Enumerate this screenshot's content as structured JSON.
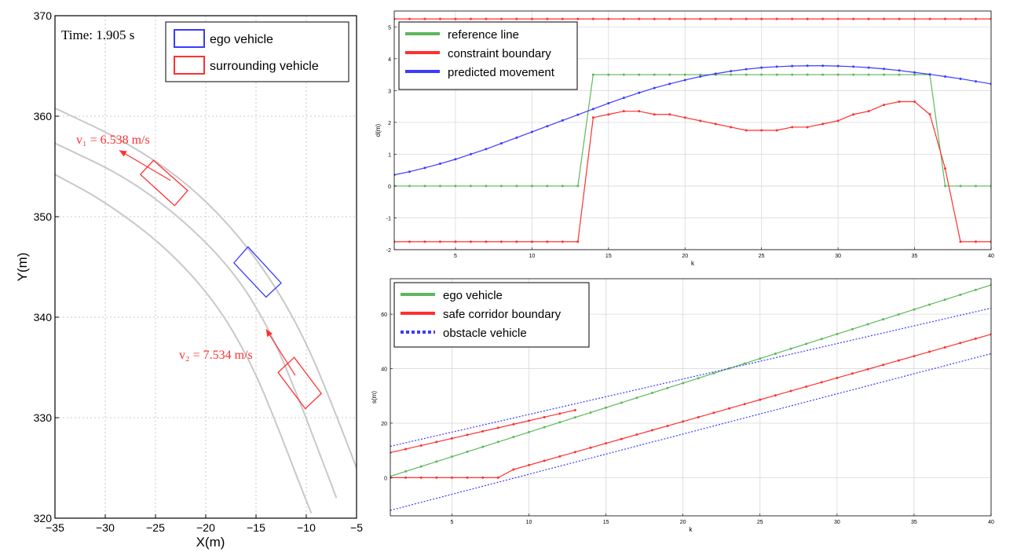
{
  "colors": {
    "green": "#5cb85c",
    "red": "#ff3030",
    "blue": "#3a3aff",
    "road": "#c8c8c8",
    "grid": "#d9d9d9",
    "frame": "#000000"
  },
  "chart_data": [
    {
      "id": "scene",
      "type": "scatter",
      "title": "",
      "xlabel": "X(m)",
      "ylabel": "Y(m)",
      "xlim": [
        -35,
        -5
      ],
      "ylim": [
        320,
        370
      ],
      "xticks": [
        -35,
        -30,
        -25,
        -20,
        -15,
        -10,
        -5
      ],
      "yticks": [
        320,
        330,
        340,
        350,
        360,
        370
      ],
      "xtick_labels": [
        "−35",
        "−30",
        "−25",
        "−20",
        "−15",
        "−10",
        "−5"
      ],
      "ytick_labels": [
        "320",
        "330",
        "340",
        "350",
        "360",
        "370"
      ],
      "grid": true,
      "grid_style": "dotted",
      "time_label": "Time: 1.905 s",
      "legend_position": "top-right",
      "legend": [
        {
          "label": "ego vehicle",
          "color": "#3a3aff"
        },
        {
          "label": "surrounding vehicle",
          "color": "#ff3030"
        }
      ],
      "road_curves": [
        [
          [
            -35,
            360.8
          ],
          [
            -28,
            357.5
          ],
          [
            -22,
            353.5
          ],
          [
            -17,
            348.5
          ],
          [
            -13,
            343
          ],
          [
            -10,
            337.5
          ],
          [
            -7.5,
            331.5
          ],
          [
            -5,
            325
          ]
        ],
        [
          [
            -35,
            357.3
          ],
          [
            -28,
            354
          ],
          [
            -22,
            349.5
          ],
          [
            -17,
            344.3
          ],
          [
            -13.5,
            338.5
          ],
          [
            -11,
            332.5
          ],
          [
            -8.5,
            326
          ],
          [
            -7,
            322
          ]
        ],
        [
          [
            -35,
            354.2
          ],
          [
            -30,
            351.5
          ],
          [
            -24,
            347
          ],
          [
            -19,
            341.5
          ],
          [
            -15.5,
            335.5
          ],
          [
            -13,
            329.5
          ],
          [
            -10.5,
            323
          ],
          [
            -9.5,
            320.5
          ]
        ]
      ],
      "vehicles": [
        {
          "kind": "ego",
          "corners": [
            [
              -17.2,
              345.4
            ],
            [
              -15.8,
              347
            ],
            [
              -12.5,
              343.4
            ],
            [
              -14,
              342
            ]
          ],
          "color": "#3a3aff"
        },
        {
          "kind": "surrounding",
          "corners": [
            [
              -26.5,
              354.2
            ],
            [
              -25.2,
              355.6
            ],
            [
              -21.8,
              352.6
            ],
            [
              -23.1,
              351.1
            ]
          ],
          "color": "#ff3030",
          "velocity_label": "v₁ = 6.538 m/s",
          "arrow_from": [
            -23.5,
            353.6
          ],
          "arrow_to": [
            -28.6,
            356.6
          ]
        },
        {
          "kind": "surrounding",
          "corners": [
            [
              -12.8,
              334.5
            ],
            [
              -11.2,
              336
            ],
            [
              -8.5,
              332.4
            ],
            [
              -10.1,
              330.9
            ]
          ],
          "color": "#ff3030",
          "velocity_label": "v₂ = 7.534 m/s",
          "arrow_from": [
            -11.1,
            334.2
          ],
          "arrow_to": [
            -14,
            338.8
          ]
        }
      ]
    },
    {
      "id": "lateral",
      "type": "line",
      "title": "",
      "xlabel": "k",
      "ylabel": "d(m)",
      "xlim": [
        1,
        40
      ],
      "ylim": [
        -2,
        5.5
      ],
      "xticks": [
        5,
        10,
        15,
        20,
        25,
        30,
        35,
        40
      ],
      "yticks": [
        -2,
        -1,
        0,
        1,
        2,
        3,
        4,
        5
      ],
      "grid": true,
      "legend_position": "top-left",
      "x": [
        1,
        2,
        3,
        4,
        5,
        6,
        7,
        8,
        9,
        10,
        11,
        12,
        13,
        14,
        15,
        16,
        17,
        18,
        19,
        20,
        21,
        22,
        23,
        24,
        25,
        26,
        27,
        28,
        29,
        30,
        31,
        32,
        33,
        34,
        35,
        36,
        37,
        38,
        39,
        40
      ],
      "series": [
        {
          "name": "reference line",
          "color": "#5cb85c",
          "values": [
            0,
            0,
            0,
            0,
            0,
            0,
            0,
            0,
            0,
            0,
            0,
            0,
            0,
            3.5,
            3.5,
            3.5,
            3.5,
            3.5,
            3.5,
            3.5,
            3.5,
            3.5,
            3.5,
            3.5,
            3.5,
            3.5,
            3.5,
            3.5,
            3.5,
            3.5,
            3.5,
            3.5,
            3.5,
            3.5,
            3.5,
            3.5,
            0,
            0,
            0,
            0
          ]
        },
        {
          "name": "constraint boundary",
          "color": "#ff3030",
          "values": [
            -1.75,
            -1.75,
            -1.75,
            -1.75,
            -1.75,
            -1.75,
            -1.75,
            -1.75,
            -1.75,
            -1.75,
            -1.75,
            -1.75,
            -1.75,
            2.15,
            2.25,
            2.35,
            2.35,
            2.25,
            2.25,
            2.15,
            2.05,
            1.95,
            1.85,
            1.75,
            1.75,
            1.75,
            1.85,
            1.85,
            1.95,
            2.05,
            2.25,
            2.35,
            2.55,
            2.65,
            2.65,
            2.25,
            0.55,
            -1.75,
            -1.75,
            -1.75
          ]
        },
        {
          "name": "constraint boundary (upper)",
          "color": "#ff3030",
          "legend": false,
          "values": [
            5.25,
            5.25,
            5.25,
            5.25,
            5.25,
            5.25,
            5.25,
            5.25,
            5.25,
            5.25,
            5.25,
            5.25,
            5.25,
            5.25,
            5.25,
            5.25,
            5.25,
            5.25,
            5.25,
            5.25,
            5.25,
            5.25,
            5.25,
            5.25,
            5.25,
            5.25,
            5.25,
            5.25,
            5.25,
            5.25,
            5.25,
            5.25,
            5.25,
            5.25,
            5.25,
            5.25,
            5.25,
            5.25,
            5.25,
            5.25
          ]
        },
        {
          "name": "predicted movement",
          "color": "#3a3aff",
          "values": [
            0.35,
            0.45,
            0.57,
            0.7,
            0.84,
            1.0,
            1.16,
            1.34,
            1.52,
            1.7,
            1.88,
            2.06,
            2.24,
            2.42,
            2.6,
            2.77,
            2.93,
            3.08,
            3.21,
            3.33,
            3.44,
            3.53,
            3.61,
            3.67,
            3.72,
            3.75,
            3.77,
            3.78,
            3.78,
            3.77,
            3.75,
            3.72,
            3.68,
            3.63,
            3.57,
            3.51,
            3.44,
            3.37,
            3.29,
            3.21
          ]
        }
      ]
    },
    {
      "id": "longitudinal",
      "type": "line",
      "title": "",
      "xlabel": "k",
      "ylabel": "s(m)",
      "xlim": [
        1,
        40
      ],
      "ylim": [
        -14,
        73
      ],
      "xticks": [
        5,
        10,
        15,
        20,
        25,
        30,
        35,
        40
      ],
      "yticks": [
        0,
        20,
        40,
        60
      ],
      "grid": true,
      "legend_position": "top-left",
      "x": [
        1,
        2,
        3,
        4,
        5,
        6,
        7,
        8,
        9,
        10,
        11,
        12,
        13,
        14,
        15,
        16,
        17,
        18,
        19,
        20,
        21,
        22,
        23,
        24,
        25,
        26,
        27,
        28,
        29,
        30,
        31,
        32,
        33,
        34,
        35,
        36,
        37,
        38,
        39,
        40
      ],
      "series": [
        {
          "name": "ego vehicle",
          "color": "#5cb85c",
          "style": "solid",
          "values": [
            0.5,
            2.3,
            4.1,
            5.9,
            7.7,
            9.5,
            11.3,
            13.1,
            14.9,
            16.7,
            18.5,
            20.3,
            22.1,
            23.9,
            25.7,
            27.5,
            29.3,
            31.1,
            32.9,
            34.7,
            36.5,
            38.3,
            40.1,
            41.9,
            43.7,
            45.5,
            47.3,
            49.1,
            50.9,
            52.7,
            54.5,
            56.3,
            58.1,
            59.9,
            61.7,
            63.5,
            65.3,
            67.1,
            68.9,
            70.7
          ]
        },
        {
          "name": "safe corridor boundary",
          "color": "#ff3030",
          "style": "solid",
          "x": [
            1,
            2,
            3,
            4,
            5,
            6,
            7,
            8,
            9,
            10,
            11,
            12,
            13
          ],
          "values": [
            9.2,
            10.5,
            11.8,
            13.1,
            14.4,
            15.7,
            17.0,
            18.3,
            19.6,
            20.9,
            22.2,
            23.5,
            24.8
          ]
        },
        {
          "name": "safe corridor boundary (lower)",
          "color": "#ff3030",
          "style": "solid",
          "legend": false,
          "values": [
            0,
            0,
            0,
            0,
            0,
            0,
            0,
            0,
            3,
            4.6,
            6.2,
            7.8,
            9.4,
            11,
            12.6,
            14.2,
            15.8,
            17.4,
            19,
            20.6,
            22.2,
            23.8,
            25.4,
            27,
            28.6,
            30.2,
            31.8,
            33.4,
            35,
            36.6,
            38.2,
            39.8,
            41.4,
            43,
            44.6,
            46.2,
            47.8,
            49.4,
            51,
            52.6
          ]
        },
        {
          "name": "obstacle vehicle",
          "color": "#3a3aff",
          "style": "dotted",
          "x": [
            1,
            40
          ],
          "values": [
            11.5,
            62.2
          ]
        },
        {
          "name": "obstacle vehicle (lower)",
          "color": "#3a3aff",
          "style": "dotted",
          "legend": false,
          "x": [
            1,
            40
          ],
          "values": [
            -12.0,
            45.5
          ]
        }
      ]
    }
  ]
}
